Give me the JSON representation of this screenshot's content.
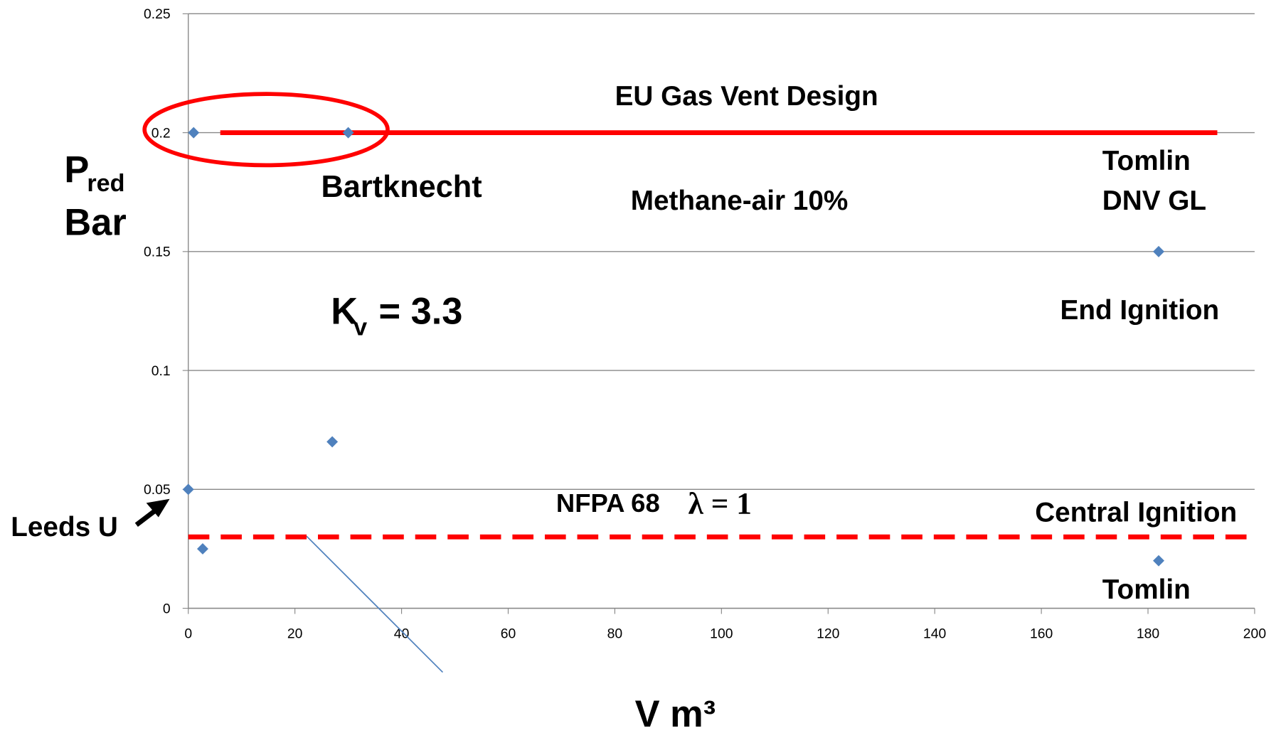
{
  "chart_data": {
    "type": "scatter",
    "x": [
      0,
      1,
      2.7,
      27,
      30,
      182,
      182
    ],
    "series": [
      {
        "color": "#4f81bd",
        "values": [
          0.05,
          0.2,
          0.025,
          0.07,
          0.2,
          0.15,
          0.02
        ]
      }
    ],
    "xlim": [
      0,
      200
    ],
    "xticks": [
      0,
      20,
      40,
      60,
      80,
      100,
      120,
      140,
      160,
      180,
      200
    ],
    "ylim": [
      0,
      0.25
    ],
    "yticks": [
      0,
      0.05,
      0.1,
      0.15,
      0.2,
      0.25
    ],
    "grid": true,
    "x_label": "V m³",
    "y_label": {
      "symbol": "P",
      "subscript": "red",
      "unit": "Bar"
    },
    "reference_lines": [
      {
        "y": 0.2,
        "x": [
          6,
          193
        ],
        "color": "#ff0000",
        "style": "solid"
      },
      {
        "y": 0.03,
        "x": [
          0,
          200
        ],
        "color": "#ff0000",
        "style": "dashed"
      }
    ],
    "annotations": [
      "EU Gas Vent Design",
      "Bartknecht",
      "Methane-air 10%",
      "Tomlin",
      "DNV GL",
      "End Ignition",
      "NFPA 68",
      "λ = 1",
      "Central Ignition",
      "Tomlin",
      "Leeds U"
    ],
    "kv_note": {
      "symbol": "K",
      "subscript": "v",
      "text": "= 3.3"
    }
  }
}
